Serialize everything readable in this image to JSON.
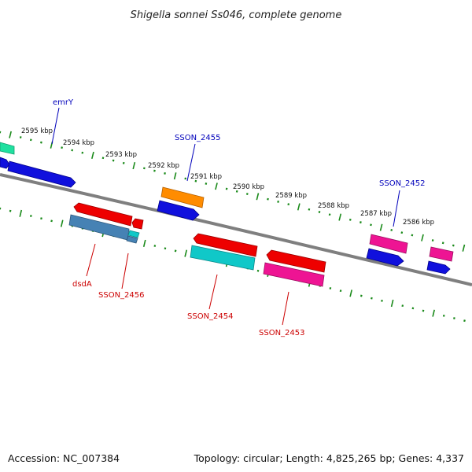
{
  "title": "Shigella sonnei Ss046, complete genome",
  "footer": {
    "accession": "Accession: NC_007384",
    "summary": "Topology: circular; Length: 4,825,265 bp; Genes: 4,337"
  },
  "ticks": {
    "labels": [
      "2595 kbp",
      "2594 kbp",
      "2593 kbp",
      "2592 kbp",
      "2591 kbp",
      "2590 kbp",
      "2589 kbp",
      "2588 kbp",
      "2587 kbp",
      "2586 kbp"
    ]
  },
  "gene_labels_top": [
    "emrY",
    "SSON_2455",
    "SSON_2452"
  ],
  "gene_labels_bottom": [
    "dsdA",
    "SSON_2456",
    "SSON_2454",
    "SSON_2453"
  ],
  "colors": {
    "backbone": "#808080",
    "tick": "#1a8a1a",
    "blue": "#1010dd",
    "red": "#ee0000",
    "orange": "#ff8c00",
    "magenta": "#ee1493",
    "cyan": "#10c8c8",
    "steel": "#4682b4",
    "teal": "#20e0a0"
  }
}
